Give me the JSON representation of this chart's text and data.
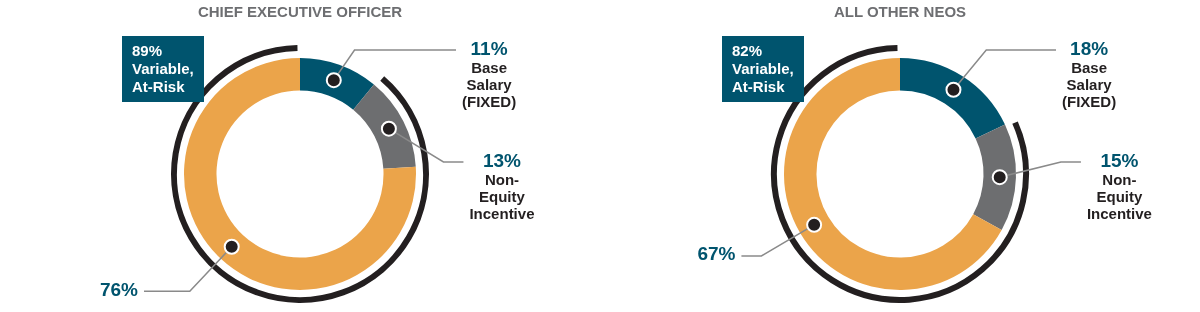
{
  "chart_data": [
    {
      "type": "donut",
      "title": "CHIEF EXECUTIVE OFFICER",
      "categories": [
        "Base Salary (FIXED)",
        "Non-Equity Incentive",
        null
      ],
      "values": [
        11,
        13,
        76
      ],
      "colors": [
        "#00546e",
        "#6d6e70",
        "#eba44a"
      ],
      "value_labels": [
        "11%",
        "13%",
        "76%"
      ],
      "annotations": [
        "89% Variable, At-Risk"
      ],
      "legend": false
    },
    {
      "type": "donut",
      "title": "ALL OTHER NEOS",
      "categories": [
        "Base Salary (FIXED)",
        "Non-Equity Incentive",
        null
      ],
      "values": [
        18,
        15,
        67
      ],
      "colors": [
        "#00546e",
        "#6d6e70",
        "#eba44a"
      ],
      "value_labels": [
        "18%",
        "15%",
        "67%"
      ],
      "annotations": [
        "82% Variable, At-Risk"
      ],
      "legend": false
    }
  ]
}
